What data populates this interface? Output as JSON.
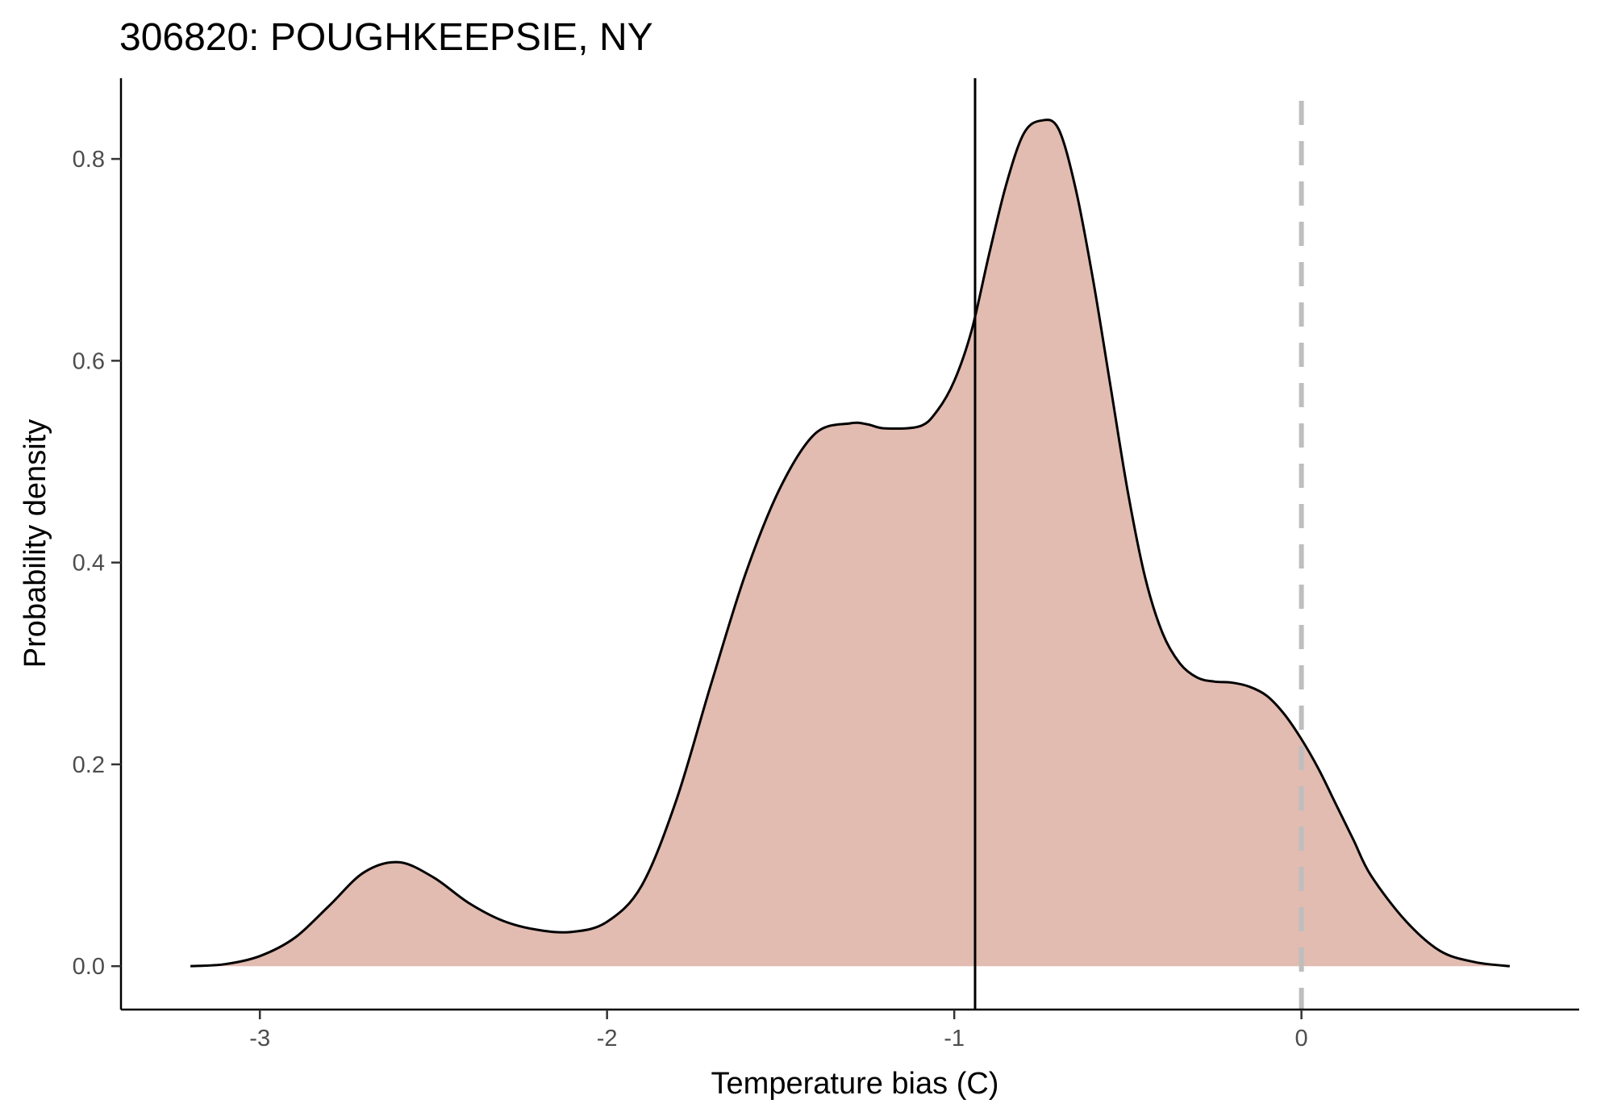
{
  "chart_data": {
    "type": "area",
    "title": "306820: POUGHKEEPSIE, NY",
    "xlabel": "Temperature bias (C)",
    "ylabel": "Probability density",
    "xlim": [
      -3.4,
      0.8
    ],
    "ylim": [
      -0.043,
      0.88
    ],
    "x_ticks": [
      -3,
      -2,
      -1,
      0
    ],
    "x_tick_labels": [
      "-3",
      "-2",
      "-1",
      "0"
    ],
    "y_ticks": [
      0.0,
      0.2,
      0.4,
      0.6,
      0.8
    ],
    "y_tick_labels": [
      "0.0",
      "0.2",
      "0.4",
      "0.6",
      "0.8"
    ],
    "grid": false,
    "fill_color": "#e2bbb1",
    "line_color": "#000000",
    "reference_lines": [
      {
        "x": -0.94,
        "style": "solid",
        "color": "#000000"
      },
      {
        "x": 0.0,
        "style": "dashed",
        "color": "#bebebe"
      }
    ],
    "density": {
      "x": [
        -3.2,
        -3.1,
        -3.0,
        -2.9,
        -2.8,
        -2.7,
        -2.6,
        -2.5,
        -2.4,
        -2.3,
        -2.2,
        -2.1,
        -2.0,
        -1.9,
        -1.8,
        -1.7,
        -1.6,
        -1.5,
        -1.4,
        -1.3,
        -1.25,
        -1.2,
        -1.1,
        -1.05,
        -1.0,
        -0.95,
        -0.9,
        -0.85,
        -0.8,
        -0.75,
        -0.7,
        -0.65,
        -0.6,
        -0.55,
        -0.5,
        -0.45,
        -0.4,
        -0.35,
        -0.3,
        -0.25,
        -0.2,
        -0.15,
        -0.1,
        -0.05,
        0.0,
        0.05,
        0.1,
        0.15,
        0.2,
        0.3,
        0.4,
        0.5,
        0.6
      ],
      "y": [
        0.0,
        0.002,
        0.01,
        0.028,
        0.06,
        0.093,
        0.103,
        0.088,
        0.063,
        0.045,
        0.036,
        0.034,
        0.044,
        0.08,
        0.165,
        0.28,
        0.39,
        0.475,
        0.528,
        0.538,
        0.537,
        0.533,
        0.535,
        0.55,
        0.58,
        0.63,
        0.705,
        0.775,
        0.825,
        0.838,
        0.83,
        0.77,
        0.68,
        0.575,
        0.47,
        0.385,
        0.33,
        0.3,
        0.286,
        0.282,
        0.281,
        0.277,
        0.268,
        0.25,
        0.225,
        0.195,
        0.16,
        0.125,
        0.09,
        0.045,
        0.015,
        0.004,
        0.0
      ]
    }
  }
}
